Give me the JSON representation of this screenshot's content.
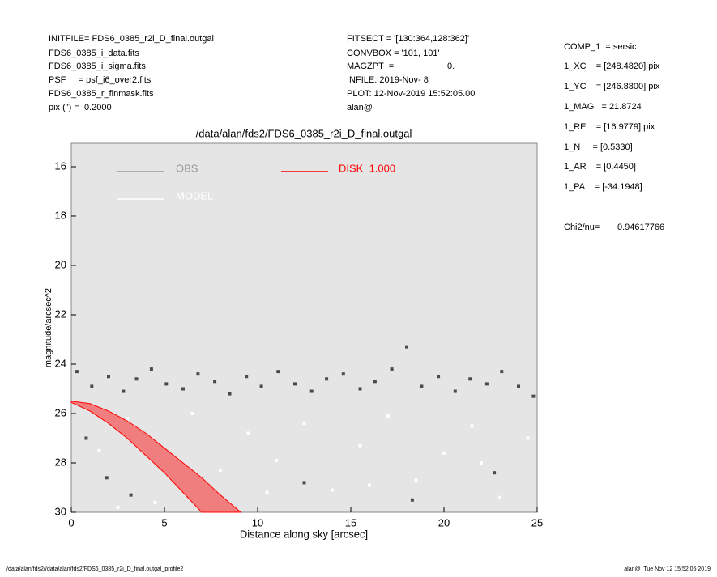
{
  "header": {
    "left": [
      "INITFILE= FDS6_0385_r2i_D_final.outgal",
      "FDS6_0385_i_data.fits",
      "FDS6_0385_i_sigma.fits",
      "PSF     = psf_i6_over2.fits",
      "FDS6_0385_r_finmask.fits",
      "pix (\") =  0.2000"
    ],
    "middle": [
      "FITSECT = '[130:364,128:362]'",
      "CONVBOX = '101, 101'",
      "MAGZPT  =",
      "INFILE: 2019-Nov- 8",
      "PLOT: 12-Nov-2019 15:52:05.00",
      "alan@"
    ],
    "magzpt": "0.",
    "right": [
      "COMP_1  = sersic",
      "1_XC    = [248.4820] pix",
      "1_YC    = [246.8800] pix",
      "1_MAG   = 21.8724",
      "1_RE    = [16.9779] pix",
      "1_N     = [0.5330]",
      "1_AR    = [0.4450]",
      "1_PA    = [-34.1948]"
    ],
    "chi2_label": "Chi2/nu=",
    "chi2_value": "0.94617766"
  },
  "footer": {
    "left": "/data/alan/fds2//data/alan/fds2/FDS6_0385_r2i_D_final.outgal_profile2",
    "right": "alan@  Tue Nov 12 15:52:05 2019"
  },
  "chart_data": {
    "type": "scatter",
    "title": "/data/alan/fds2/FDS6_0385_r2i_D_final.outgal",
    "xlabel": "Distance along sky [arcsec]",
    "ylabel": "magnitude/arcsec^2",
    "xlim": [
      0,
      25
    ],
    "ylim": [
      30,
      15.05
    ],
    "xticks": [
      0,
      5,
      10,
      15,
      20,
      25
    ],
    "yticks": [
      16,
      18,
      20,
      22,
      24,
      26,
      28,
      30
    ],
    "series": [
      {
        "name": "OBS",
        "color": "#4a4a4a",
        "legend_color": "#999999",
        "style": "points",
        "x": [
          0.3,
          1.1,
          2.0,
          2.8,
          3.5,
          4.3,
          5.1,
          6.0,
          6.8,
          7.7,
          8.5,
          9.4,
          10.2,
          11.1,
          12.0,
          12.9,
          13.7,
          14.6,
          15.5,
          16.3,
          17.2,
          18.0,
          18.8,
          19.7,
          20.6,
          21.4,
          22.3,
          23.1,
          24.0,
          24.8,
          0.8,
          1.9,
          3.2,
          12.5,
          18.3,
          22.7
        ],
        "values": [
          24.3,
          24.9,
          24.5,
          25.1,
          24.6,
          24.2,
          24.8,
          25.0,
          24.4,
          24.7,
          25.2,
          24.5,
          24.9,
          24.3,
          24.8,
          25.1,
          24.6,
          24.4,
          25.0,
          24.7,
          24.2,
          23.3,
          24.9,
          24.5,
          25.1,
          24.6,
          24.8,
          24.3,
          24.9,
          25.3,
          27.0,
          28.6,
          29.3,
          28.8,
          29.5,
          28.4
        ]
      },
      {
        "name": "MODEL",
        "color": "#ffffff",
        "legend_color": "#ffffff",
        "style": "points",
        "x": [
          1.5,
          3.0,
          4.5,
          6.5,
          8.0,
          9.5,
          11.0,
          12.5,
          14.0,
          15.5,
          17.0,
          18.5,
          20.0,
          21.5,
          23.0,
          24.5,
          2.5,
          10.5,
          16.0,
          22.0
        ],
        "values": [
          27.5,
          26.2,
          29.6,
          26.0,
          28.3,
          26.8,
          27.9,
          26.4,
          29.1,
          27.3,
          26.1,
          28.7,
          27.6,
          26.5,
          29.4,
          27.0,
          29.8,
          29.2,
          28.9,
          28.0
        ]
      },
      {
        "name": "DISK  1.000",
        "color": "#ff0000",
        "legend_color": "#ff0000",
        "style": "line",
        "x": [
          0,
          1,
          2,
          3,
          4,
          5,
          6,
          7,
          8,
          9.1,
          7,
          6,
          5,
          4,
          3,
          2,
          1,
          0
        ],
        "values": [
          25.5,
          25.6,
          25.9,
          26.3,
          26.8,
          27.4,
          28.0,
          28.6,
          29.3,
          30,
          30,
          29.2,
          28.4,
          27.7,
          27.0,
          26.4,
          25.9,
          25.55
        ]
      }
    ]
  }
}
